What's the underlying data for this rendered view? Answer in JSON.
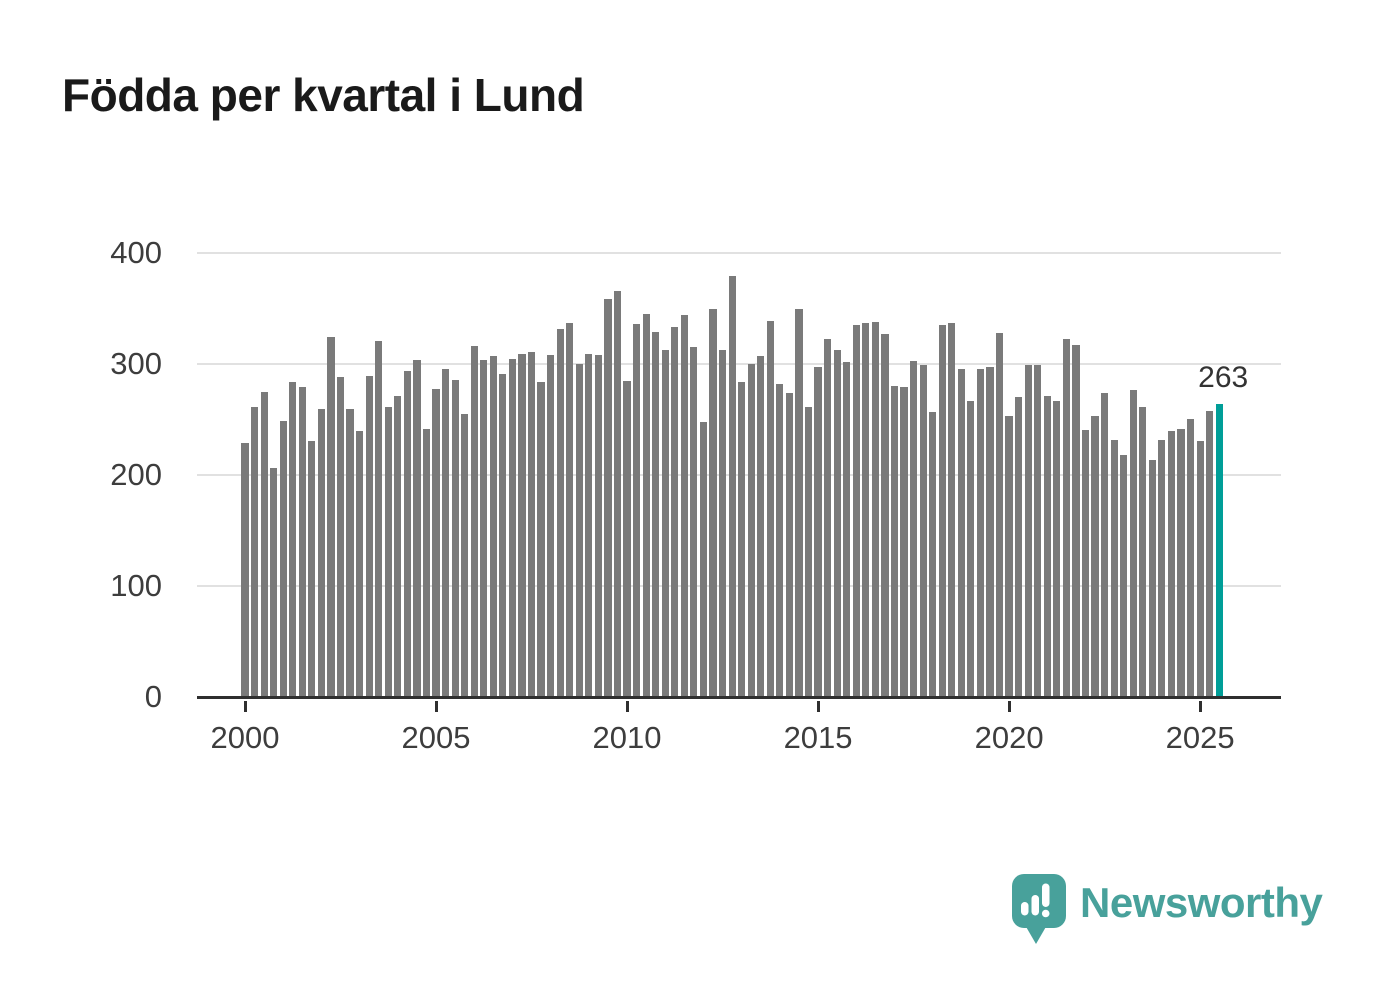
{
  "title": "Födda per kvartal i Lund",
  "chart_data": {
    "type": "bar",
    "title": "Födda per kvartal i Lund",
    "period_start": "2000-Q1",
    "period_end": "2025-Q3",
    "frequency": "quarterly",
    "values": [
      228,
      260,
      274,
      205,
      248,
      283,
      278,
      230,
      259,
      323,
      287,
      259,
      239,
      288,
      320,
      260,
      270,
      293,
      303,
      241,
      277,
      295,
      285,
      254,
      315,
      303,
      306,
      290,
      304,
      308,
      310,
      283,
      307,
      331,
      336,
      299,
      308,
      307,
      358,
      365,
      284,
      335,
      344,
      328,
      312,
      332,
      343,
      314,
      247,
      349,
      312,
      378,
      283,
      299,
      306,
      338,
      281,
      273,
      349,
      260,
      296,
      322,
      312,
      301,
      334,
      336,
      337,
      326,
      279,
      278,
      302,
      298,
      256,
      334,
      336,
      295,
      266,
      295,
      296,
      327,
      252,
      269,
      298,
      298,
      270,
      266,
      322,
      316,
      240,
      252,
      273,
      231,
      217,
      276,
      260,
      213,
      231,
      239,
      241,
      250,
      230,
      257,
      263
    ],
    "x_tick_labels": [
      "2000",
      "2005",
      "2010",
      "2015",
      "2020",
      "2025"
    ],
    "x_ticks_every_n_bars": 20,
    "y_ticks": [
      0,
      100,
      200,
      300,
      400
    ],
    "ylim": [
      0,
      400
    ],
    "grid": true,
    "legend": "none",
    "bar_color": "#7a7a7a",
    "gridline_color": "#e1e1e1",
    "axis_color": "#2f2f2f",
    "highlight": {
      "index": 102,
      "label": "263",
      "color": "#009e98"
    }
  },
  "logo": {
    "text": "Newsworthy",
    "color": "#48a19b",
    "icon": "speech-bubble-bar-chart"
  }
}
